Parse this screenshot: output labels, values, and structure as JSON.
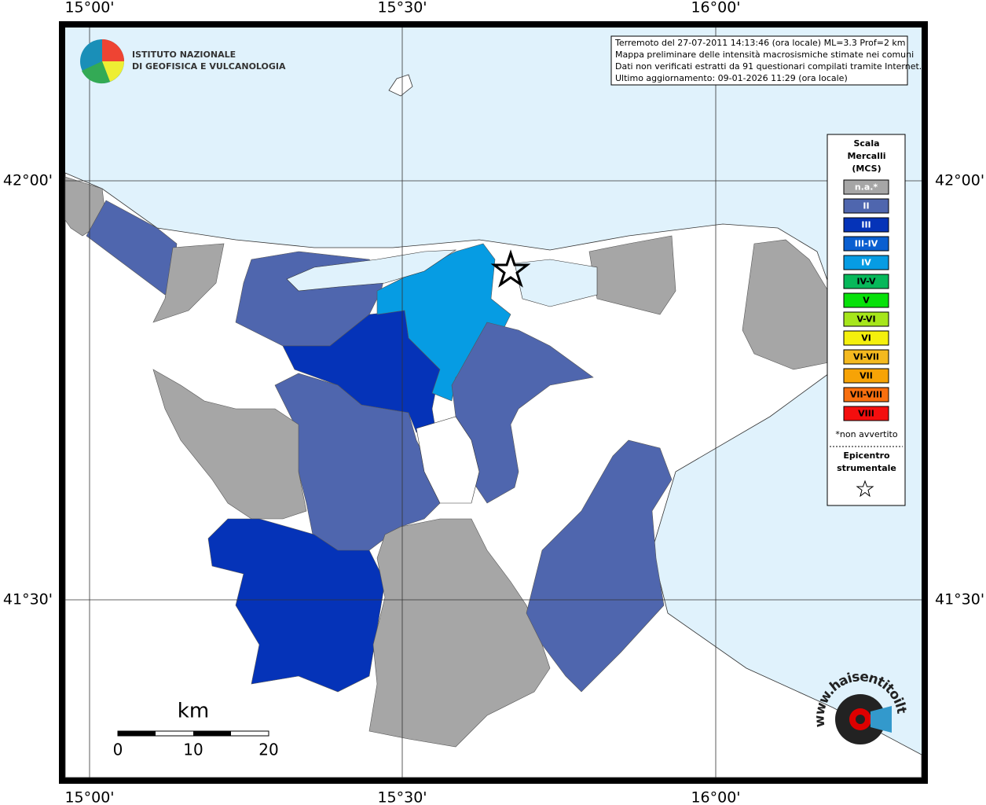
{
  "map": {
    "lon_labels": [
      "15°00'",
      "15°30'",
      "16°00'"
    ],
    "lat_labels": [
      "42°00'",
      "41°30'"
    ],
    "info": [
      "Terremoto del 27-07-2011 14:13:46 (ora locale) ML=3.3 Prof=2 km",
      "Mappa preliminare delle intensità macrosismiche stimate nei comuni",
      "Dati non verificati estratti da 91 questionari compilati tramite Internet.",
      "Ultimo aggiornamento: 09-01-2026 11:29 (ora locale)"
    ],
    "institute": [
      "ISTITUTO NAZIONALE",
      "DI GEOFISICA E VULCANOLOGIA"
    ],
    "legend": {
      "title": [
        "Scala",
        "Mercalli",
        "(MCS)"
      ],
      "classes": [
        {
          "label": "n.a.*",
          "color": "#a6a6a6"
        },
        {
          "label": "II",
          "color": "#4f66ae"
        },
        {
          "label": "III",
          "color": "#0533b8"
        },
        {
          "label": "III-IV",
          "color": "#0a5fd1"
        },
        {
          "label": "IV",
          "color": "#069ce3"
        },
        {
          "label": "IV-V",
          "color": "#06b85a"
        },
        {
          "label": "V",
          "color": "#07e10a"
        },
        {
          "label": "V-VI",
          "color": "#a6e61b"
        },
        {
          "label": "VI",
          "color": "#f4f00d"
        },
        {
          "label": "VI-VII",
          "color": "#f4b91f"
        },
        {
          "label": "VII",
          "color": "#f7a306"
        },
        {
          "label": "VII-VIII",
          "color": "#f86f0f"
        },
        {
          "label": "VIII",
          "color": "#f40e0e"
        }
      ],
      "note": "*non avvertito",
      "epicenter": [
        "Epicentro",
        "strumentale"
      ]
    },
    "scale_bar": {
      "unit": "km",
      "labels": [
        "0",
        "10",
        "20"
      ]
    },
    "logo": "www.haisentitoilterremoto.it"
  }
}
